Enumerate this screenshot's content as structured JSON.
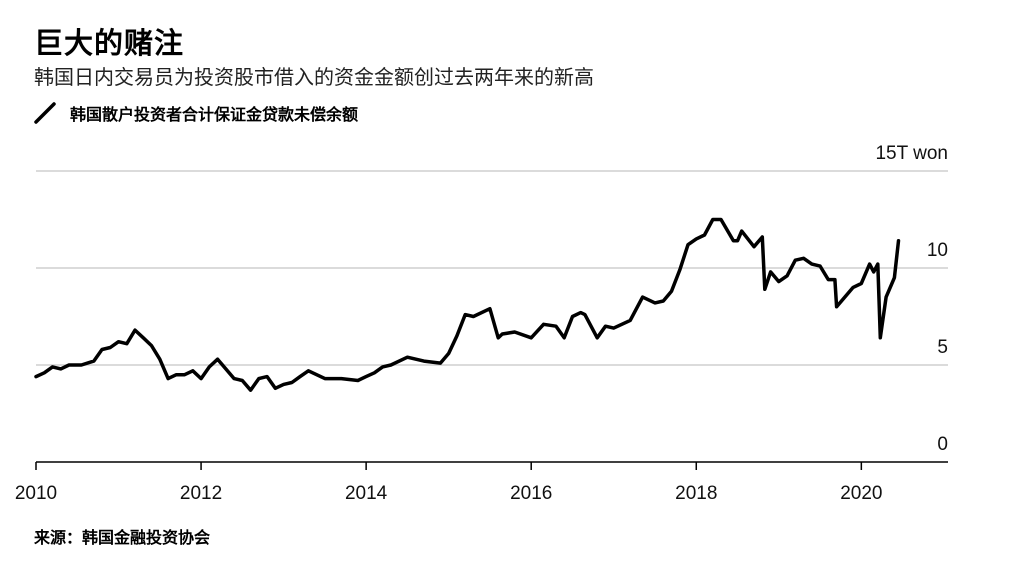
{
  "title": "巨大的赌注",
  "subtitle": "韩国日内交易员为投资股市借入的资金金额创过去两年来的新高",
  "legend": {
    "label": "韩国散户投资者合计保证金贷款未偿余额",
    "color": "#000000"
  },
  "source": "来源：韩国金融投资协会",
  "chart_data": {
    "type": "line",
    "title": "巨大的赌注",
    "subtitle": "韩国日内交易员为投资股市借入的资金金额创过去两年来的新高",
    "xlabel": "",
    "ylabel": "",
    "y_unit_label": "15T won",
    "xlim": [
      2010,
      2021.05
    ],
    "ylim": [
      0,
      15
    ],
    "grid": true,
    "x_ticks": [
      {
        "value": 2010,
        "label": "2010"
      },
      {
        "value": 2012,
        "label": "2012"
      },
      {
        "value": 2014,
        "label": "2014"
      },
      {
        "value": 2016,
        "label": "2016"
      },
      {
        "value": 2018,
        "label": "2018"
      },
      {
        "value": 2020,
        "label": "2020"
      }
    ],
    "y_ticks": [
      {
        "value": 0,
        "label": "0"
      },
      {
        "value": 5,
        "label": "5"
      },
      {
        "value": 10,
        "label": "10"
      },
      {
        "value": 15,
        "label": "15T won"
      }
    ],
    "series": [
      {
        "name": "韩国散户投资者合计保证金贷款未偿余额",
        "color": "#000000",
        "x": [
          2010.0,
          2010.1,
          2010.2,
          2010.3,
          2010.4,
          2010.55,
          2010.7,
          2010.8,
          2010.9,
          2011.0,
          2011.1,
          2011.2,
          2011.3,
          2011.4,
          2011.5,
          2011.6,
          2011.7,
          2011.8,
          2011.9,
          2012.0,
          2012.1,
          2012.2,
          2012.3,
          2012.4,
          2012.5,
          2012.6,
          2012.7,
          2012.8,
          2012.9,
          2013.0,
          2013.1,
          2013.2,
          2013.3,
          2013.5,
          2013.7,
          2013.9,
          2014.0,
          2014.1,
          2014.2,
          2014.3,
          2014.5,
          2014.7,
          2014.9,
          2015.0,
          2015.1,
          2015.2,
          2015.3,
          2015.5,
          2015.6,
          2015.65,
          2015.8,
          2016.0,
          2016.15,
          2016.3,
          2016.4,
          2016.5,
          2016.6,
          2016.65,
          2016.8,
          2016.9,
          2017.0,
          2017.2,
          2017.35,
          2017.5,
          2017.6,
          2017.7,
          2017.8,
          2017.9,
          2018.0,
          2018.1,
          2018.2,
          2018.3,
          2018.45,
          2018.5,
          2018.55,
          2018.7,
          2018.8,
          2018.83,
          2018.9,
          2019.0,
          2019.1,
          2019.2,
          2019.3,
          2019.4,
          2019.5,
          2019.6,
          2019.68,
          2019.7,
          2019.8,
          2019.9,
          2020.0,
          2020.1,
          2020.15,
          2020.2,
          2020.23,
          2020.3,
          2020.4,
          2020.45
        ],
        "values": [
          4.4,
          4.6,
          4.9,
          4.8,
          5.0,
          5.0,
          5.2,
          5.8,
          5.9,
          6.2,
          6.1,
          6.8,
          6.4,
          6.0,
          5.3,
          4.3,
          4.5,
          4.5,
          4.7,
          4.3,
          4.9,
          5.3,
          4.8,
          4.3,
          4.2,
          3.7,
          4.3,
          4.4,
          3.8,
          4.0,
          4.1,
          4.4,
          4.7,
          4.3,
          4.3,
          4.2,
          4.4,
          4.6,
          4.9,
          5.0,
          5.4,
          5.2,
          5.1,
          5.6,
          6.5,
          7.6,
          7.5,
          7.9,
          6.4,
          6.6,
          6.7,
          6.4,
          7.1,
          7.0,
          6.4,
          7.5,
          7.7,
          7.6,
          6.4,
          7.0,
          6.9,
          7.3,
          8.5,
          8.2,
          8.3,
          8.8,
          9.9,
          11.2,
          11.5,
          11.7,
          12.5,
          12.5,
          11.4,
          11.4,
          11.9,
          11.1,
          11.6,
          8.9,
          9.8,
          9.3,
          9.6,
          10.4,
          10.5,
          10.2,
          10.1,
          9.4,
          9.4,
          8.0,
          8.5,
          9.0,
          9.2,
          10.2,
          9.8,
          10.2,
          6.4,
          8.5,
          9.5,
          11.4
        ]
      }
    ]
  }
}
